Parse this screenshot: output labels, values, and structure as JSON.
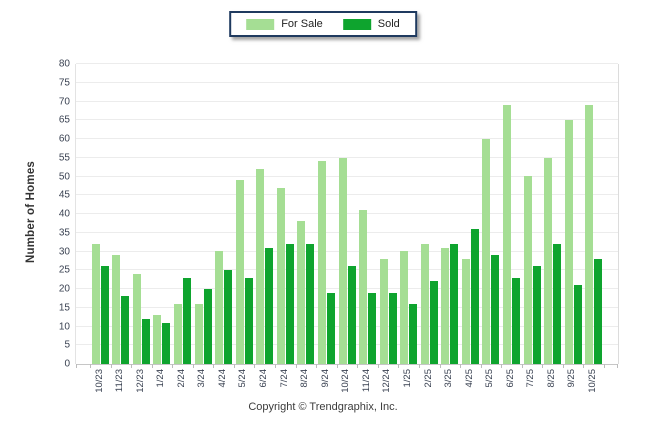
{
  "legend": {
    "items": [
      {
        "label": "For Sale",
        "color": "#a5de94"
      },
      {
        "label": "Sold",
        "color": "#0ea42e"
      }
    ]
  },
  "footer": {
    "copyright": "Copyright © Trendgraphix, Inc."
  },
  "colors": {
    "for_sale": "#a5de94",
    "sold": "#0ea42e",
    "legend_border": "#1f3a5f",
    "gridline": "#ececec",
    "axis_line": "#c6c6c6",
    "tick_text": "#3a4252"
  },
  "chart_data": {
    "type": "bar",
    "title": "",
    "categories": [
      "10/23",
      "11/23",
      "12/23",
      "1/24",
      "2/24",
      "3/24",
      "4/24",
      "5/24",
      "6/24",
      "7/24",
      "8/24",
      "9/24",
      "10/24",
      "11/24",
      "12/24",
      "1/25",
      "2/25",
      "3/25",
      "4/25",
      "5/25",
      "6/25",
      "7/25",
      "8/25",
      "9/25",
      "10/25"
    ],
    "series": [
      {
        "name": "For Sale",
        "color": "#a5de94",
        "values": [
          32,
          29,
          24,
          13,
          16,
          16,
          30,
          49,
          52,
          47,
          38,
          54,
          55,
          41,
          28,
          30,
          32,
          31,
          28,
          60,
          69,
          50,
          55,
          65,
          69
        ]
      },
      {
        "name": "Sold",
        "color": "#0ea42e",
        "values": [
          26,
          18,
          12,
          11,
          23,
          20,
          25,
          23,
          31,
          32,
          32,
          19,
          26,
          19,
          19,
          16,
          22,
          32,
          36,
          29,
          23,
          26,
          32,
          21,
          28
        ]
      }
    ],
    "xlabel": "",
    "ylabel": "Number of Homes",
    "ylim": [
      0,
      80
    ],
    "ytick_step": 5,
    "grid": true,
    "legend_position": "top-center"
  }
}
